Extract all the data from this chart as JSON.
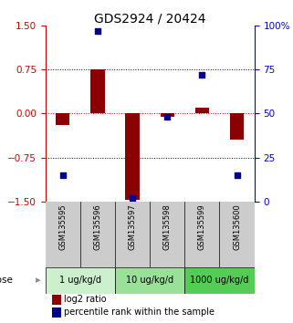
{
  "title": "GDS2924 / 20424",
  "samples": [
    "GSM135595",
    "GSM135596",
    "GSM135597",
    "GSM135598",
    "GSM135599",
    "GSM135600"
  ],
  "log2_ratio": [
    -0.2,
    0.75,
    -1.48,
    -0.05,
    0.1,
    -0.45
  ],
  "percentile": [
    15,
    97,
    2,
    48,
    72,
    15
  ],
  "ylim_left": [
    -1.5,
    1.5
  ],
  "ylim_right": [
    0,
    100
  ],
  "yticks_left": [
    -1.5,
    -0.75,
    0,
    0.75,
    1.5
  ],
  "yticks_right": [
    0,
    25,
    50,
    75,
    100
  ],
  "ytick_labels_right": [
    "0",
    "25",
    "50",
    "75",
    "100%"
  ],
  "hlines_dotted": [
    -0.75,
    0.75
  ],
  "hline_red": 0,
  "bar_color": "#8B0000",
  "dot_color": "#00008B",
  "dose_groups": [
    {
      "label": "1 ug/kg/d",
      "indices": [
        0,
        1
      ],
      "color": "#ccf0cc"
    },
    {
      "label": "10 ug/kg/d",
      "indices": [
        2,
        3
      ],
      "color": "#99e099"
    },
    {
      "label": "1000 ug/kg/d",
      "indices": [
        4,
        5
      ],
      "color": "#55cc55"
    }
  ],
  "dose_label": "dose",
  "legend_bar_label": "log2 ratio",
  "legend_dot_label": "percentile rank within the sample",
  "sample_bg_color": "#cccccc",
  "title_fontsize": 10,
  "axis_color_left": "#cc0000",
  "axis_color_right": "#0000cc",
  "bar_width": 0.4,
  "dot_size": 22
}
